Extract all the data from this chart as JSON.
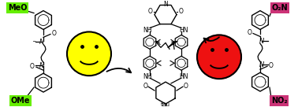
{
  "bg_color": "#ffffff",
  "smiley_color": "#ffff00",
  "smiley_edge": "#000000",
  "sad_color": "#ee1111",
  "sad_edge": "#000000",
  "meo_box_color": "#66ee00",
  "no2_box_color": "#cc3377",
  "meo_box_text": "MeO",
  "ome_box_text": "OMe",
  "o2n_box_text": "O₂N",
  "no2_box_text": "NO₂",
  "box_text_color": "#000000",
  "arrow_color": "#000000",
  "figsize": [
    3.78,
    1.36
  ],
  "dpi": 100,
  "xlim": [
    0,
    378
  ],
  "ylim": [
    0,
    136
  ]
}
